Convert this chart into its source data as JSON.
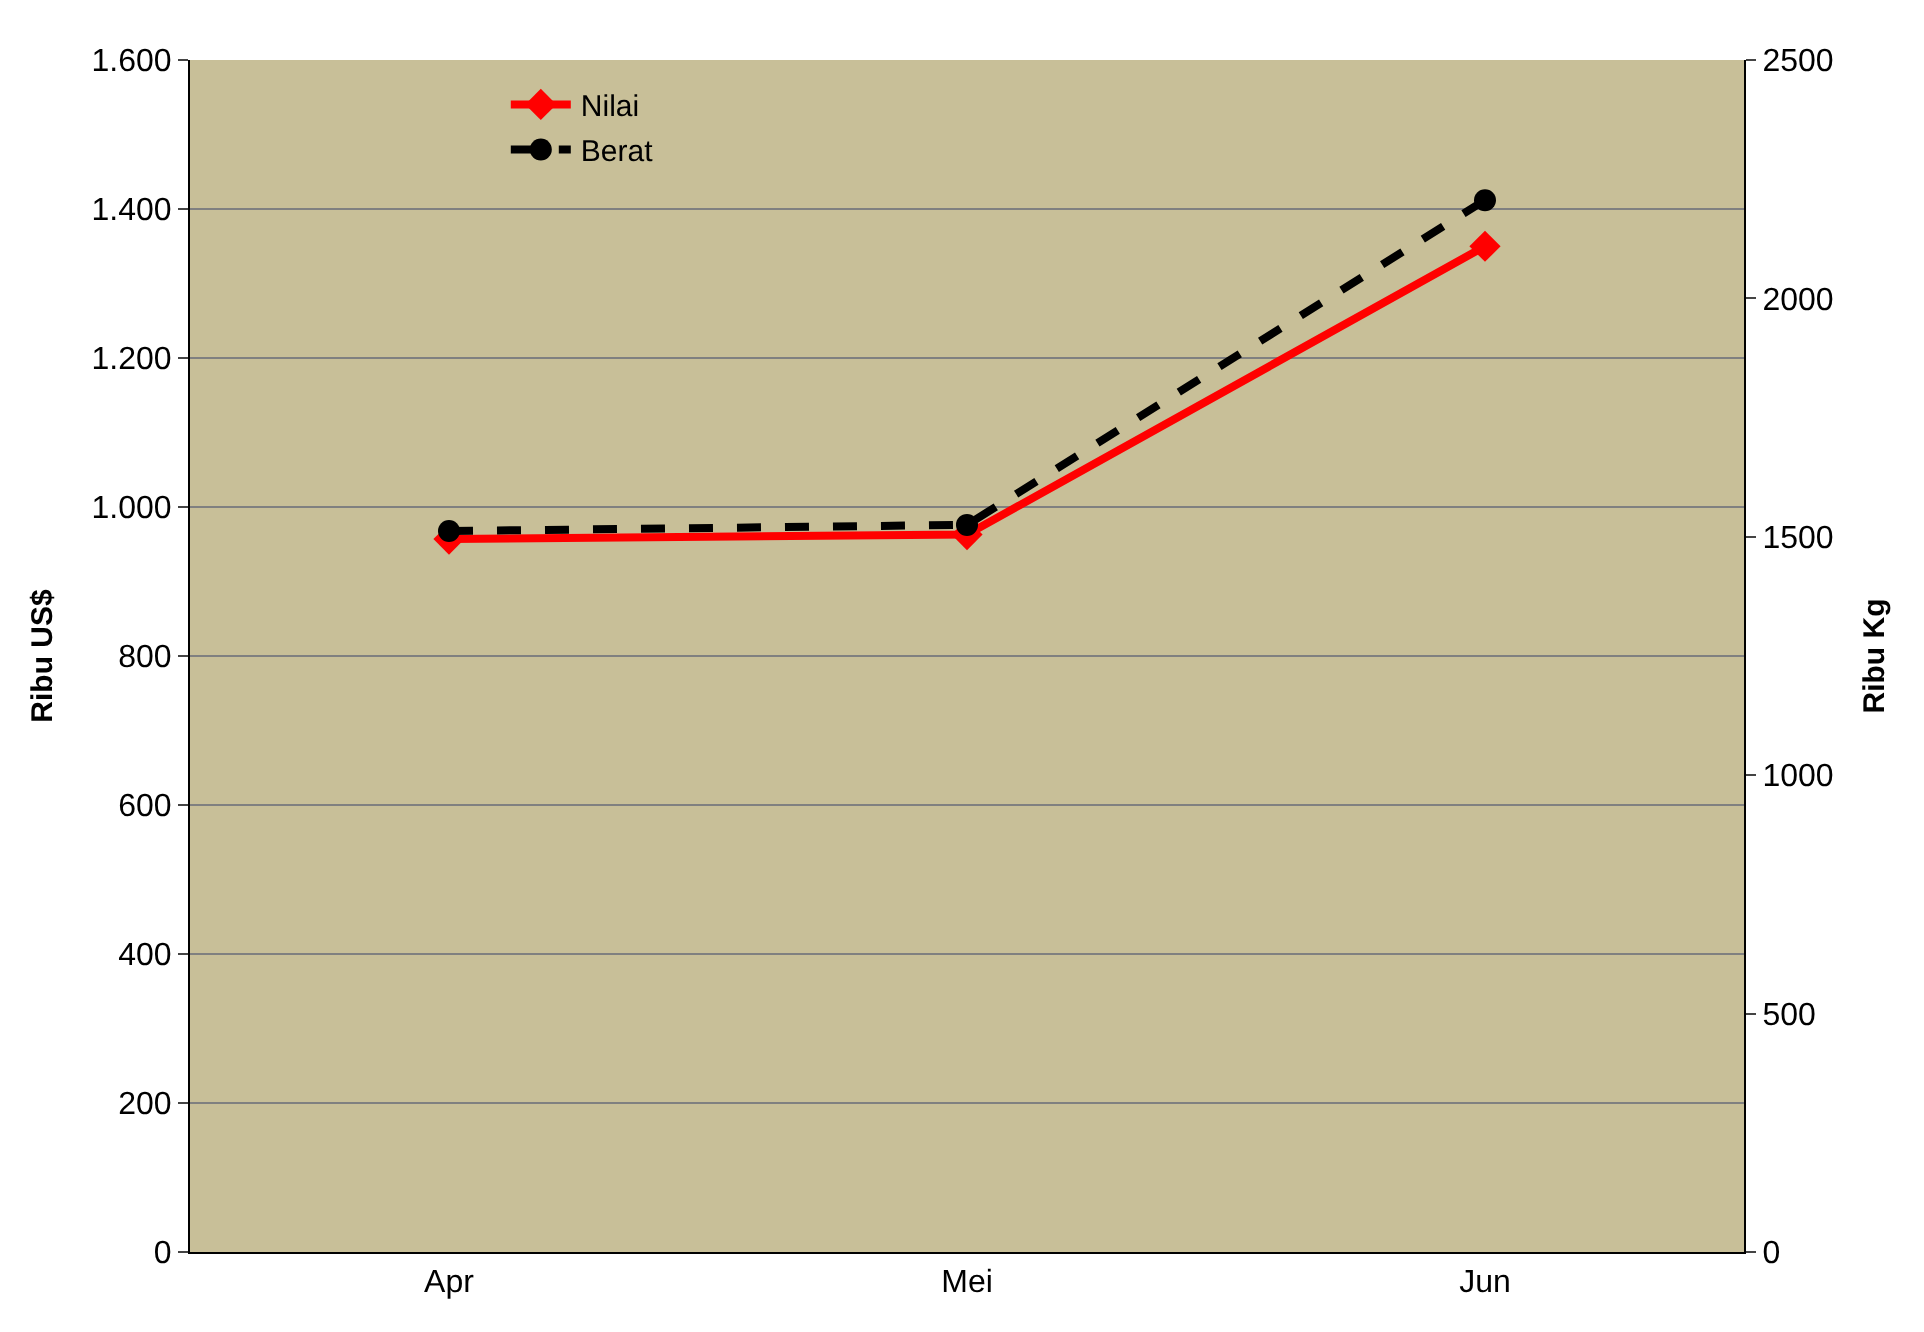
{
  "chart_data": {
    "type": "line",
    "ylabel": "Ribu US$",
    "y2label": "Ribu Kg",
    "categories": [
      "Apr",
      "Mei",
      "Jun"
    ],
    "series": [
      {
        "name": "Nilai",
        "color": "#ff0000",
        "values": [
          957,
          963,
          1350
        ],
        "marker": "diamond",
        "line_style": "solid"
      },
      {
        "name": "Berat",
        "color": "#000000",
        "values": [
          1512,
          1525,
          2206
        ],
        "axis": "y2",
        "marker": "circle",
        "line_style": "dashed"
      }
    ],
    "ylim": [
      0,
      1600
    ],
    "yticks": [
      0,
      200,
      400,
      600,
      800,
      {
        "value": 1000,
        "label": "1.000"
      },
      {
        "value": 1200,
        "label": "1.200"
      },
      {
        "value": 1400,
        "label": "1.400"
      },
      {
        "value": 1600,
        "label": "1.600"
      }
    ],
    "y2lim": [
      0,
      2500
    ],
    "y2ticks": [
      0,
      500,
      1000,
      1500,
      2000,
      2500
    ],
    "grid": "y",
    "legend": "top left"
  }
}
